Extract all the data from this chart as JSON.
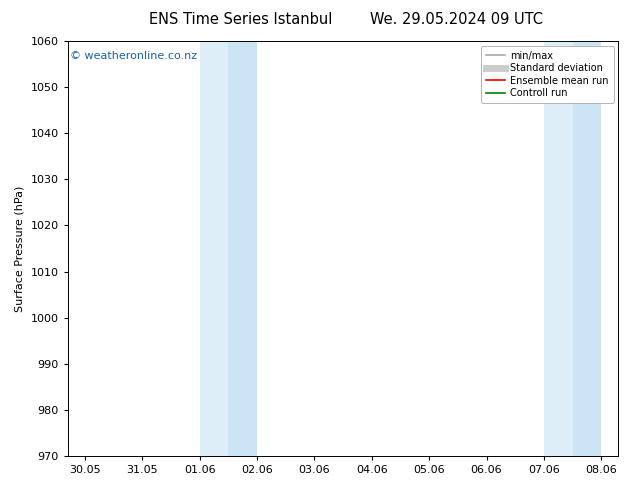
{
  "title_left": "ENS Time Series Istanbul",
  "title_right": "We. 29.05.2024 09 UTC",
  "ylabel": "Surface Pressure (hPa)",
  "ylim": [
    970,
    1060
  ],
  "yticks": [
    970,
    980,
    990,
    1000,
    1010,
    1020,
    1030,
    1040,
    1050,
    1060
  ],
  "xtick_labels": [
    "30.05",
    "31.05",
    "01.06",
    "02.06",
    "03.06",
    "04.06",
    "05.06",
    "06.06",
    "07.06",
    "08.06"
  ],
  "xtick_positions": [
    0,
    1,
    2,
    3,
    4,
    5,
    6,
    7,
    8,
    9
  ],
  "xlim": [
    -0.3,
    9.3
  ],
  "shaded_regions": [
    {
      "xmin": 2.0,
      "xmax": 2.5,
      "color": "#ddeef8",
      "alpha": 1.0
    },
    {
      "xmin": 2.5,
      "xmax": 3.0,
      "color": "#cce4f4",
      "alpha": 1.0
    },
    {
      "xmin": 8.0,
      "xmax": 8.5,
      "color": "#ddeef8",
      "alpha": 1.0
    },
    {
      "xmin": 8.5,
      "xmax": 9.0,
      "color": "#cce4f4",
      "alpha": 1.0
    }
  ],
  "watermark": "© weatheronline.co.nz",
  "watermark_color": "#1a5fa8",
  "background_color": "#ffffff",
  "legend_entries": [
    {
      "label": "min/max",
      "color": "#aaaaaa",
      "lw": 1.2
    },
    {
      "label": "Standard deviation",
      "color": "#cccccc",
      "lw": 5
    },
    {
      "label": "Ensemble mean run",
      "color": "#ee0000",
      "lw": 1.2
    },
    {
      "label": "Controll run",
      "color": "#008800",
      "lw": 1.2
    }
  ],
  "title_fontsize": 10.5,
  "axis_label_fontsize": 8,
  "tick_fontsize": 8,
  "legend_fontsize": 7,
  "watermark_fontsize": 8,
  "figsize": [
    6.34,
    4.9
  ],
  "dpi": 100
}
